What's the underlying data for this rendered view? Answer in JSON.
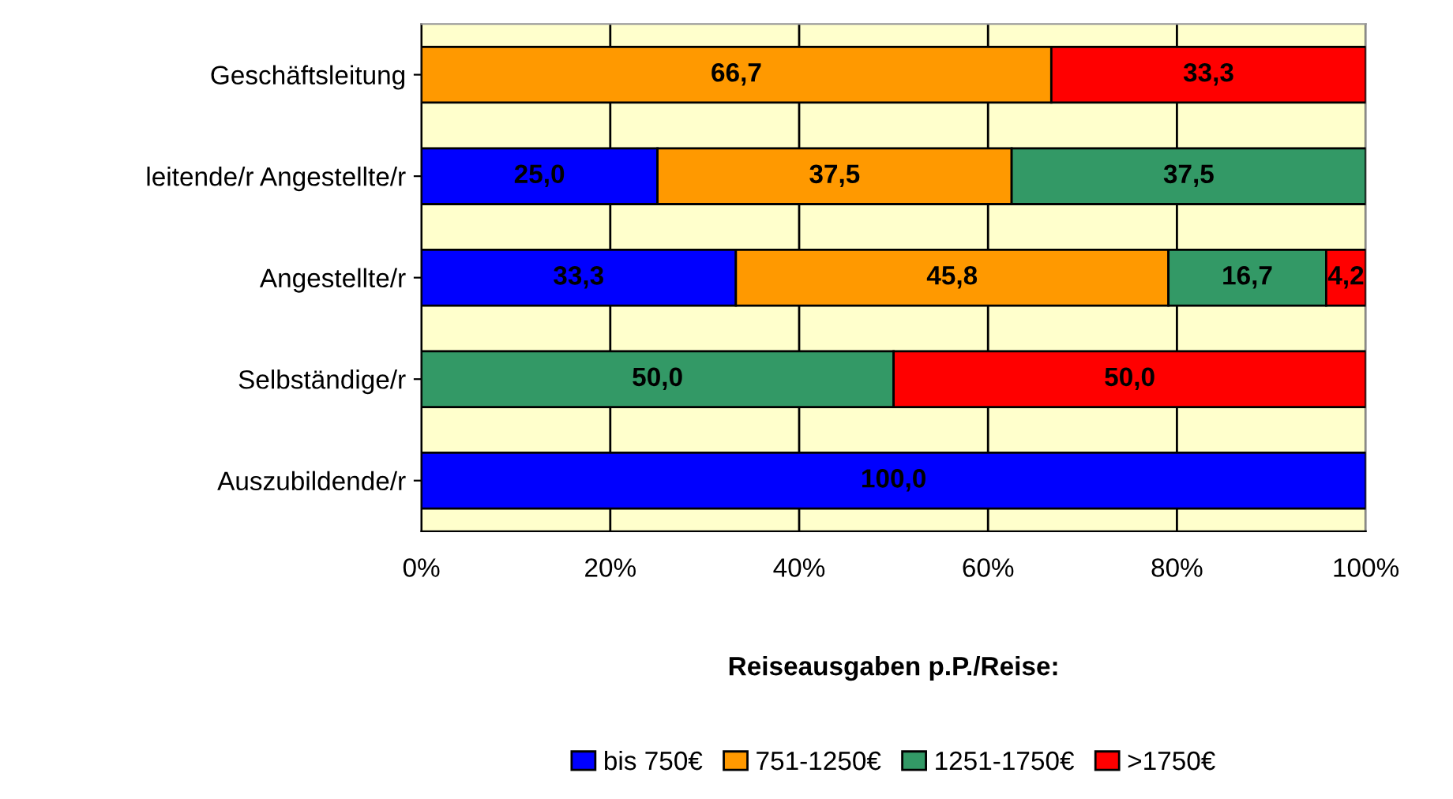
{
  "chart_data": {
    "type": "bar",
    "orientation": "horizontal",
    "stacked": true,
    "categories": [
      "Geschäftsleitung",
      "leitende/r Angestellte/r",
      "Angestellte/r",
      "Selbständige/r",
      "Auszubildende/r"
    ],
    "series": [
      {
        "name": "bis 750€",
        "color": "#0000ff",
        "values": [
          null,
          25.0,
          33.3,
          null,
          100.0
        ],
        "value_labels": [
          null,
          "25,0",
          "33,3",
          null,
          "100,0"
        ]
      },
      {
        "name": "751-1250€",
        "color": "#ff9900",
        "values": [
          66.7,
          37.5,
          45.8,
          null,
          null
        ],
        "value_labels": [
          "66,7",
          "37,5",
          "45,8",
          null,
          null
        ]
      },
      {
        "name": "1251-1750€",
        "color": "#339966",
        "values": [
          null,
          37.5,
          16.7,
          50.0,
          null
        ],
        "value_labels": [
          null,
          "37,5",
          "16,7",
          "50,0",
          null
        ]
      },
      {
        "name": ">1750€",
        "color": "#ff0000",
        "values": [
          33.3,
          null,
          4.2,
          50.0,
          null
        ],
        "value_labels": [
          "33,3",
          null,
          "4,2",
          "50,0",
          null
        ]
      }
    ],
    "xlim": [
      0,
      100
    ],
    "xticks": [
      {
        "value": 0,
        "label": "0%"
      },
      {
        "value": 20,
        "label": "20%"
      },
      {
        "value": 40,
        "label": "40%"
      },
      {
        "value": 60,
        "label": "60%"
      },
      {
        "value": 80,
        "label": "80%"
      },
      {
        "value": 100,
        "label": "100%"
      }
    ],
    "legend_title": "Reiseausgaben p.P./Reise:",
    "legend": "bottom",
    "grid": "x"
  }
}
